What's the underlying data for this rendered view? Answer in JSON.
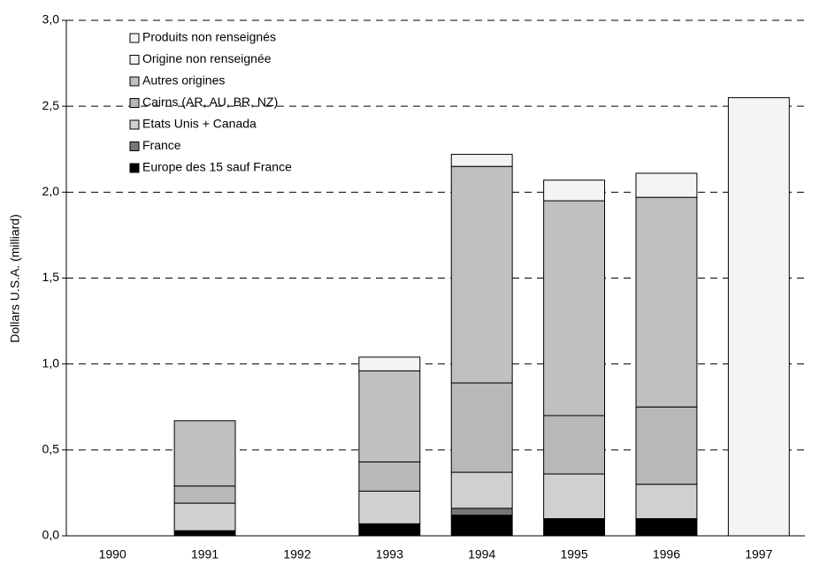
{
  "chart_data": {
    "type": "stacked_bar",
    "y_label": "Dollars U.S.A. (milliard)",
    "categories": [
      "1990",
      "1991",
      "1992",
      "1993",
      "1994",
      "1995",
      "1996",
      "1997"
    ],
    "series": [
      {
        "name": "Europe des 15 sauf France",
        "color": "#000000",
        "values": [
          null,
          0.03,
          null,
          0.07,
          0.12,
          0.1,
          0.1,
          0
        ]
      },
      {
        "name": "France",
        "color": "#777777",
        "values": [
          null,
          0,
          null,
          0,
          0.04,
          0,
          0,
          0
        ]
      },
      {
        "name": "Etats Unis + Canada",
        "color": "#d0d0d0",
        "values": [
          null,
          0.16,
          null,
          0.19,
          0.21,
          0.26,
          0.2,
          0
        ]
      },
      {
        "name": "Cairns (AR, AU, BR, NZ)",
        "color": "#b8b8b8",
        "values": [
          null,
          0.1,
          null,
          0.17,
          0.52,
          0.34,
          0.45,
          0
        ]
      },
      {
        "name": "Autres origines",
        "color": "#c0c0c0",
        "values": [
          null,
          0.38,
          null,
          0.53,
          1.26,
          1.25,
          1.22,
          0
        ]
      },
      {
        "name": "Origine non renseignée",
        "color": "#f0f0f0",
        "values": [
          null,
          0,
          null,
          0,
          0,
          0,
          0,
          0
        ]
      },
      {
        "name": "Produits non renseignés",
        "color": "#f4f4f4",
        "values": [
          null,
          0,
          null,
          0.08,
          0.07,
          0.12,
          0.14,
          2.55
        ]
      }
    ],
    "ylim": [
      0,
      3
    ],
    "yticks": [
      {
        "value": 0,
        "label": "0,0"
      },
      {
        "value": 0.5,
        "label": "0,5"
      },
      {
        "value": 1,
        "label": "1,0"
      },
      {
        "value": 1.5,
        "label": "1,5"
      },
      {
        "value": 2,
        "label": "2,0"
      },
      {
        "value": 2.5,
        "label": "2,5"
      },
      {
        "value": 3,
        "label": "3,0"
      }
    ],
    "grid": true
  }
}
